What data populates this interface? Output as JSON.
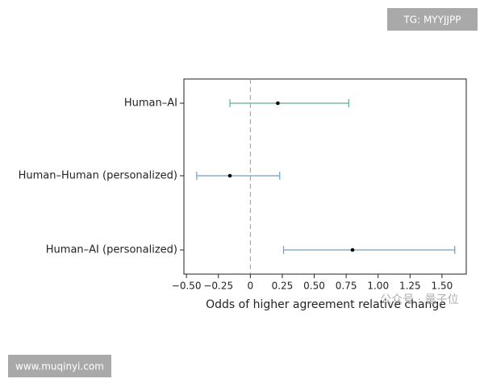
{
  "chart_data": {
    "type": "forest",
    "xlabel": "Odds of higher agreement relative change",
    "categories": [
      "Human–AI",
      "Human–Human (personalized)",
      "Human–AI (personalized)"
    ],
    "values": [
      0.215,
      -0.16,
      0.8
    ],
    "lower": [
      -0.16,
      -0.42,
      0.26
    ],
    "upper": [
      0.77,
      0.23,
      1.6
    ],
    "colors": [
      "#5fae95",
      "#6f9fc4",
      "#6f9fc4"
    ],
    "xlim": [
      -0.52,
      1.69
    ],
    "xticks": [
      {
        "value": -0.5,
        "label": "−0.50"
      },
      {
        "value": -0.25,
        "label": "−0.25"
      },
      0,
      {
        "value": 0.25,
        "label": "0.25"
      },
      {
        "value": 0.5,
        "label": "0.50"
      },
      {
        "value": 0.75,
        "label": "0.75"
      },
      {
        "value": 1,
        "label": "1.00"
      },
      {
        "value": 1.25,
        "label": "1.25"
      },
      {
        "value": 1.5,
        "label": "1.50"
      }
    ],
    "refline": 0
  },
  "watermarks": {
    "top": "TG: MYYJJPP",
    "bottom": "www.muqinyi.com",
    "overlay": "公众号 · 量子位"
  }
}
